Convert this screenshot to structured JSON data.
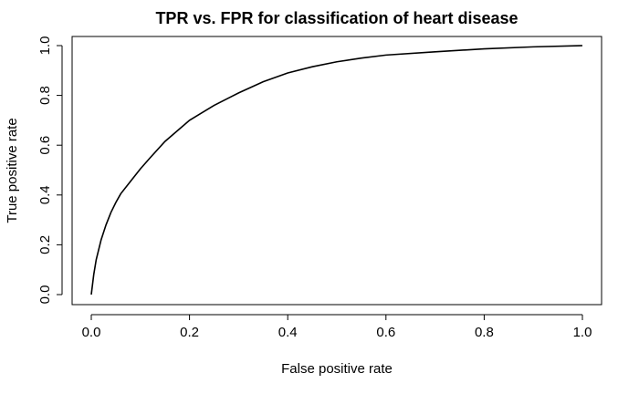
{
  "chart_data": {
    "type": "line",
    "title": "TPR vs. FPR for classification of heart disease",
    "xlabel": "False positive rate",
    "ylabel": "True positive rate",
    "xlim": [
      0,
      1
    ],
    "ylim": [
      0,
      1
    ],
    "xticks": [
      "0.0",
      "0.2",
      "0.4",
      "0.6",
      "0.8",
      "1.0"
    ],
    "yticks": [
      "0.0",
      "0.2",
      "0.4",
      "0.6",
      "0.8",
      "1.0"
    ],
    "grid": false,
    "line_color": "#000000",
    "series": [
      {
        "x": [
          0.0,
          0.005,
          0.01,
          0.02,
          0.03,
          0.04,
          0.05,
          0.06,
          0.08,
          0.1,
          0.12,
          0.15,
          0.2,
          0.25,
          0.3,
          0.35,
          0.4,
          0.45,
          0.5,
          0.55,
          0.6,
          0.7,
          0.8,
          0.9,
          1.0
        ],
        "y": [
          0.0,
          0.08,
          0.14,
          0.22,
          0.28,
          0.33,
          0.37,
          0.405,
          0.455,
          0.505,
          0.55,
          0.615,
          0.7,
          0.76,
          0.81,
          0.855,
          0.89,
          0.915,
          0.935,
          0.95,
          0.962,
          0.975,
          0.987,
          0.995,
          1.0
        ]
      }
    ]
  }
}
